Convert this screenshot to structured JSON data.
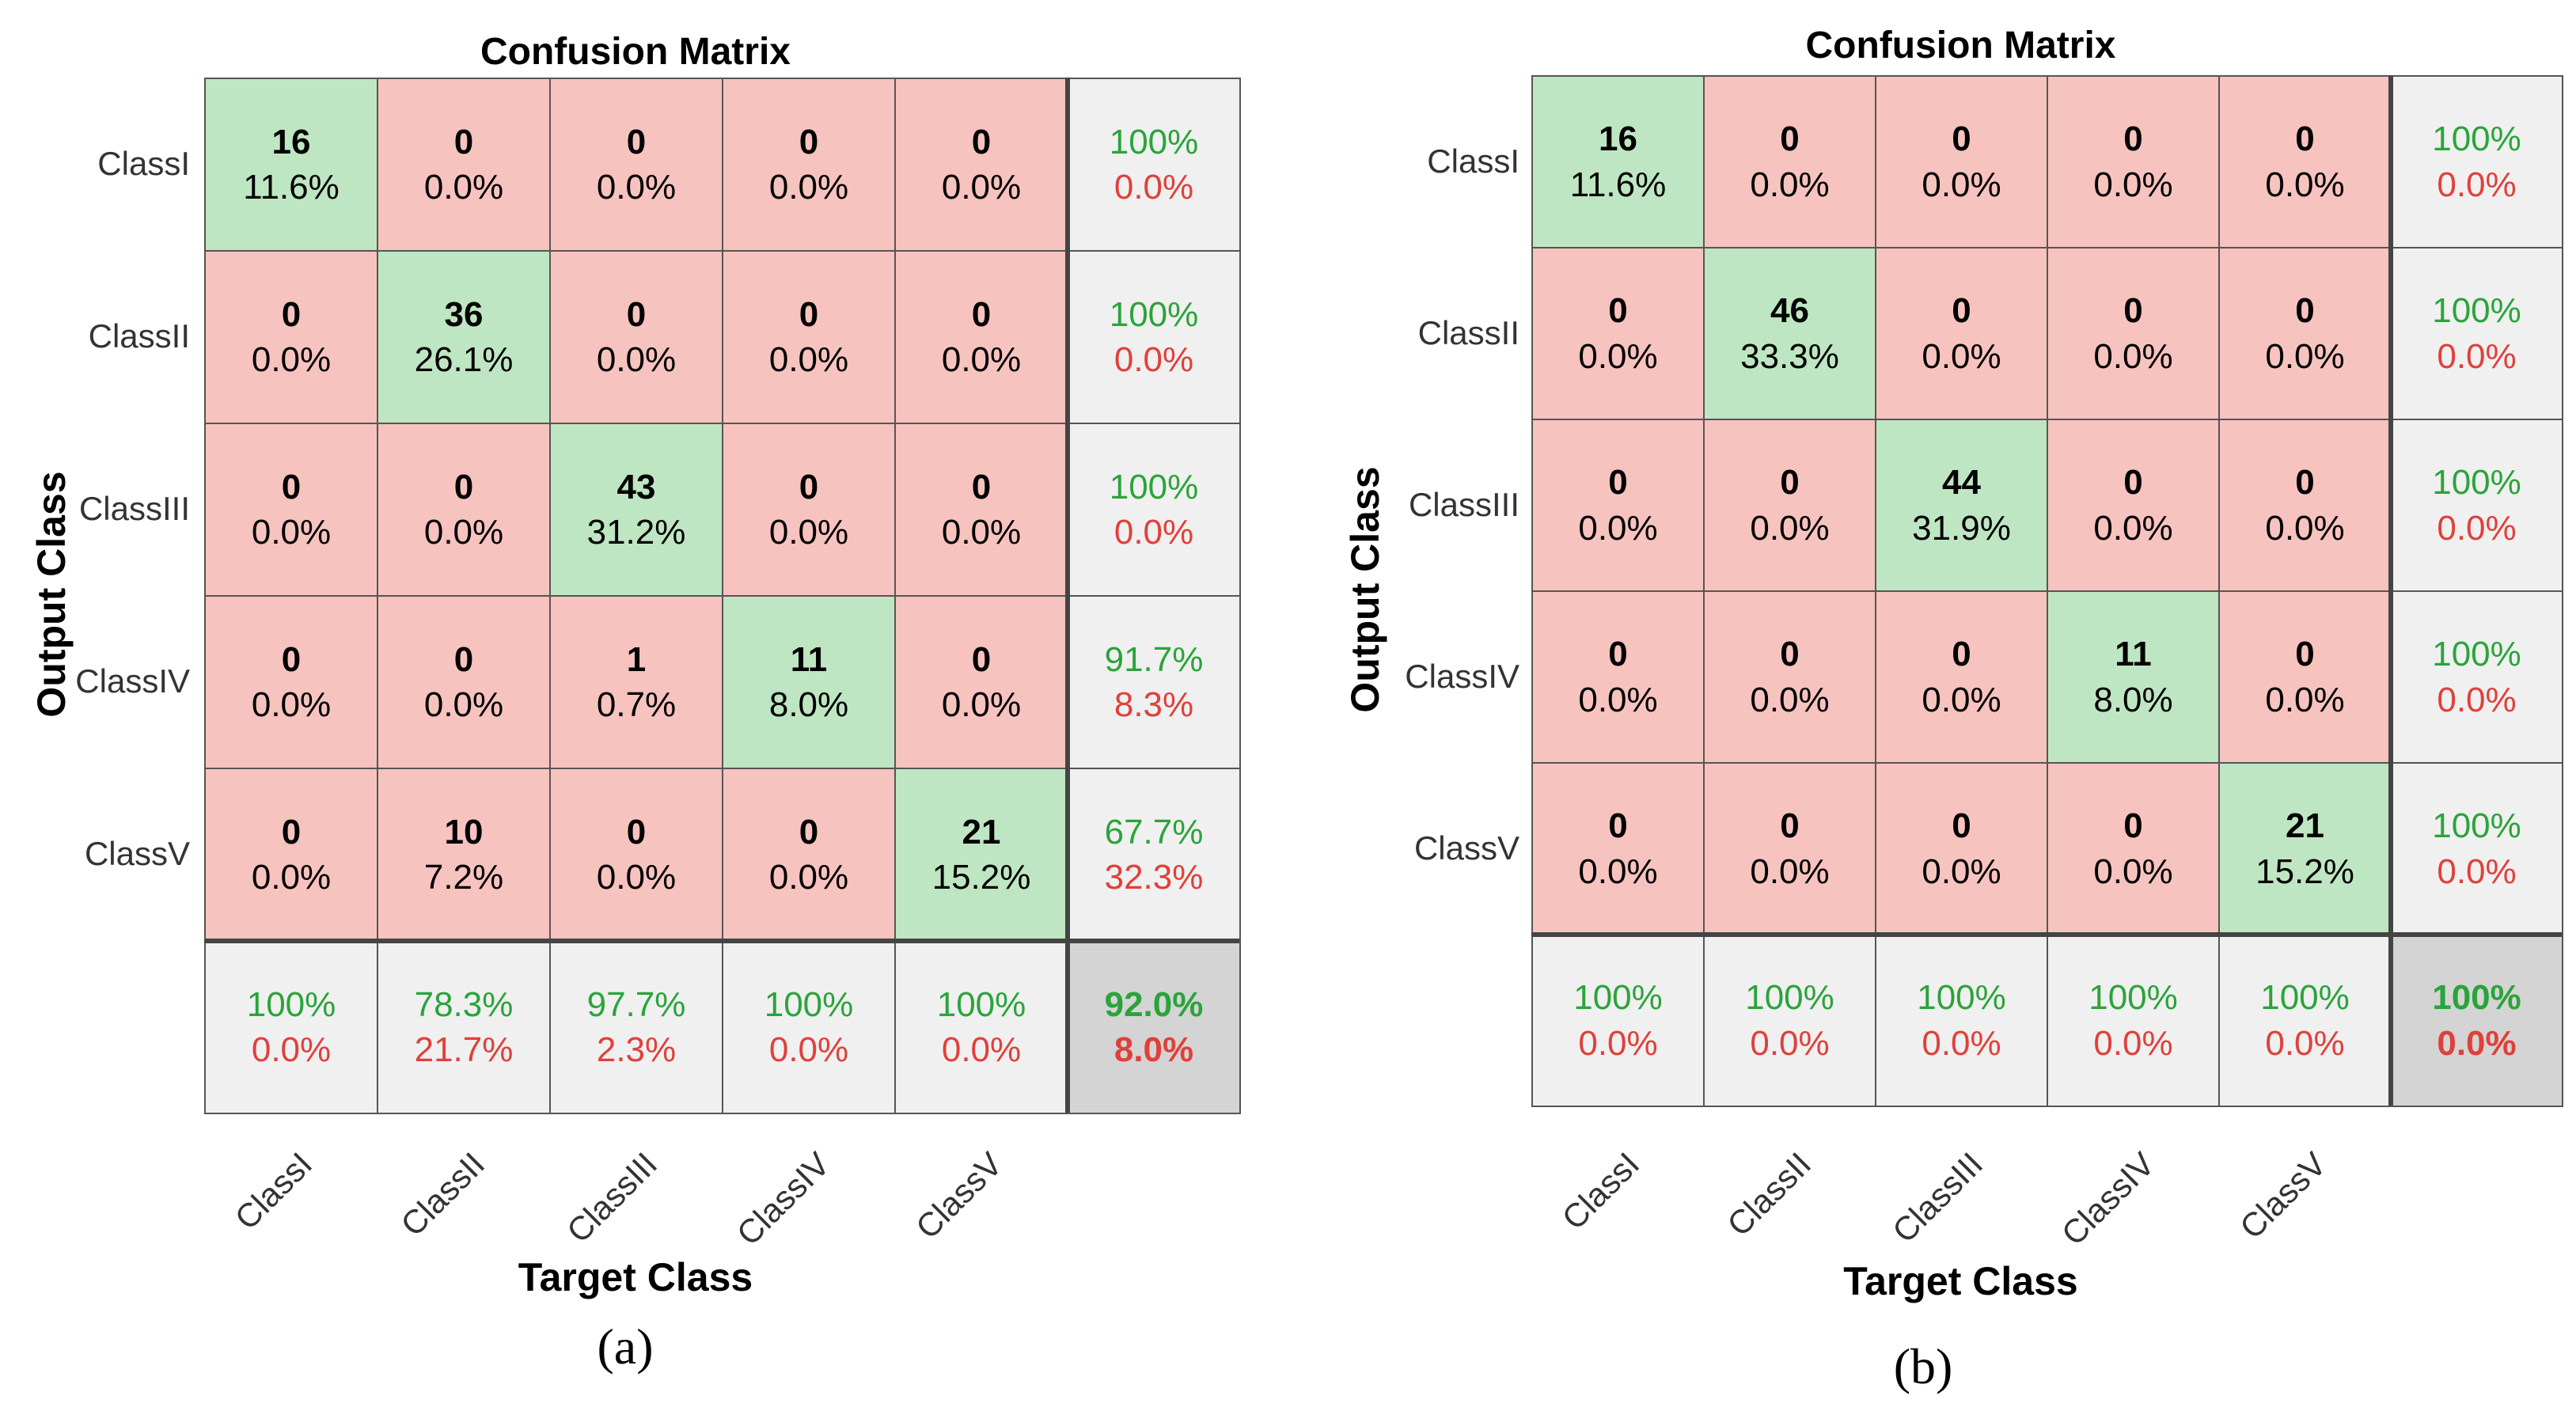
{
  "colors": {
    "correct": "#bfe6c2",
    "wrong": "#f7c3bf",
    "summary": "#f0f0f0",
    "overall": "#d4d4d4",
    "good_text": "#2aa43a",
    "bad_text": "#e0403a"
  },
  "chart_data": [
    {
      "type": "heatmap",
      "title": "Confusion Matrix",
      "xlabel": "Target Class",
      "ylabel": "Output Class",
      "caption": "(a)",
      "classes": [
        "ClassI",
        "ClassII",
        "ClassIII",
        "ClassIV",
        "ClassV"
      ],
      "matrix": [
        [
          {
            "count": "16",
            "pct": "11.6%"
          },
          {
            "count": "0",
            "pct": "0.0%"
          },
          {
            "count": "0",
            "pct": "0.0%"
          },
          {
            "count": "0",
            "pct": "0.0%"
          },
          {
            "count": "0",
            "pct": "0.0%"
          }
        ],
        [
          {
            "count": "0",
            "pct": "0.0%"
          },
          {
            "count": "36",
            "pct": "26.1%"
          },
          {
            "count": "0",
            "pct": "0.0%"
          },
          {
            "count": "0",
            "pct": "0.0%"
          },
          {
            "count": "0",
            "pct": "0.0%"
          }
        ],
        [
          {
            "count": "0",
            "pct": "0.0%"
          },
          {
            "count": "0",
            "pct": "0.0%"
          },
          {
            "count": "43",
            "pct": "31.2%"
          },
          {
            "count": "0",
            "pct": "0.0%"
          },
          {
            "count": "0",
            "pct": "0.0%"
          }
        ],
        [
          {
            "count": "0",
            "pct": "0.0%"
          },
          {
            "count": "0",
            "pct": "0.0%"
          },
          {
            "count": "1",
            "pct": "0.7%"
          },
          {
            "count": "11",
            "pct": "8.0%"
          },
          {
            "count": "0",
            "pct": "0.0%"
          }
        ],
        [
          {
            "count": "0",
            "pct": "0.0%"
          },
          {
            "count": "10",
            "pct": "7.2%"
          },
          {
            "count": "0",
            "pct": "0.0%"
          },
          {
            "count": "0",
            "pct": "0.0%"
          },
          {
            "count": "21",
            "pct": "15.2%"
          }
        ]
      ],
      "row_summary": [
        {
          "good": "100%",
          "bad": "0.0%"
        },
        {
          "good": "100%",
          "bad": "0.0%"
        },
        {
          "good": "100%",
          "bad": "0.0%"
        },
        {
          "good": "91.7%",
          "bad": "8.3%"
        },
        {
          "good": "67.7%",
          "bad": "32.3%"
        }
      ],
      "col_summary": [
        {
          "good": "100%",
          "bad": "0.0%"
        },
        {
          "good": "78.3%",
          "bad": "21.7%"
        },
        {
          "good": "97.7%",
          "bad": "2.3%"
        },
        {
          "good": "100%",
          "bad": "0.0%"
        },
        {
          "good": "100%",
          "bad": "0.0%"
        }
      ],
      "overall": {
        "good": "92.0%",
        "bad": "8.0%"
      }
    },
    {
      "type": "heatmap",
      "title": "Confusion Matrix",
      "xlabel": "Target Class",
      "ylabel": "Output Class",
      "caption": "(b)",
      "classes": [
        "ClassI",
        "ClassII",
        "ClassIII",
        "ClassIV",
        "ClassV"
      ],
      "matrix": [
        [
          {
            "count": "16",
            "pct": "11.6%"
          },
          {
            "count": "0",
            "pct": "0.0%"
          },
          {
            "count": "0",
            "pct": "0.0%"
          },
          {
            "count": "0",
            "pct": "0.0%"
          },
          {
            "count": "0",
            "pct": "0.0%"
          }
        ],
        [
          {
            "count": "0",
            "pct": "0.0%"
          },
          {
            "count": "46",
            "pct": "33.3%"
          },
          {
            "count": "0",
            "pct": "0.0%"
          },
          {
            "count": "0",
            "pct": "0.0%"
          },
          {
            "count": "0",
            "pct": "0.0%"
          }
        ],
        [
          {
            "count": "0",
            "pct": "0.0%"
          },
          {
            "count": "0",
            "pct": "0.0%"
          },
          {
            "count": "44",
            "pct": "31.9%"
          },
          {
            "count": "0",
            "pct": "0.0%"
          },
          {
            "count": "0",
            "pct": "0.0%"
          }
        ],
        [
          {
            "count": "0",
            "pct": "0.0%"
          },
          {
            "count": "0",
            "pct": "0.0%"
          },
          {
            "count": "0",
            "pct": "0.0%"
          },
          {
            "count": "11",
            "pct": "8.0%"
          },
          {
            "count": "0",
            "pct": "0.0%"
          }
        ],
        [
          {
            "count": "0",
            "pct": "0.0%"
          },
          {
            "count": "0",
            "pct": "0.0%"
          },
          {
            "count": "0",
            "pct": "0.0%"
          },
          {
            "count": "0",
            "pct": "0.0%"
          },
          {
            "count": "21",
            "pct": "15.2%"
          }
        ]
      ],
      "row_summary": [
        {
          "good": "100%",
          "bad": "0.0%"
        },
        {
          "good": "100%",
          "bad": "0.0%"
        },
        {
          "good": "100%",
          "bad": "0.0%"
        },
        {
          "good": "100%",
          "bad": "0.0%"
        },
        {
          "good": "100%",
          "bad": "0.0%"
        }
      ],
      "col_summary": [
        {
          "good": "100%",
          "bad": "0.0%"
        },
        {
          "good": "100%",
          "bad": "0.0%"
        },
        {
          "good": "100%",
          "bad": "0.0%"
        },
        {
          "good": "100%",
          "bad": "0.0%"
        },
        {
          "good": "100%",
          "bad": "0.0%"
        }
      ],
      "overall": {
        "good": "100%",
        "bad": "0.0%"
      }
    }
  ]
}
